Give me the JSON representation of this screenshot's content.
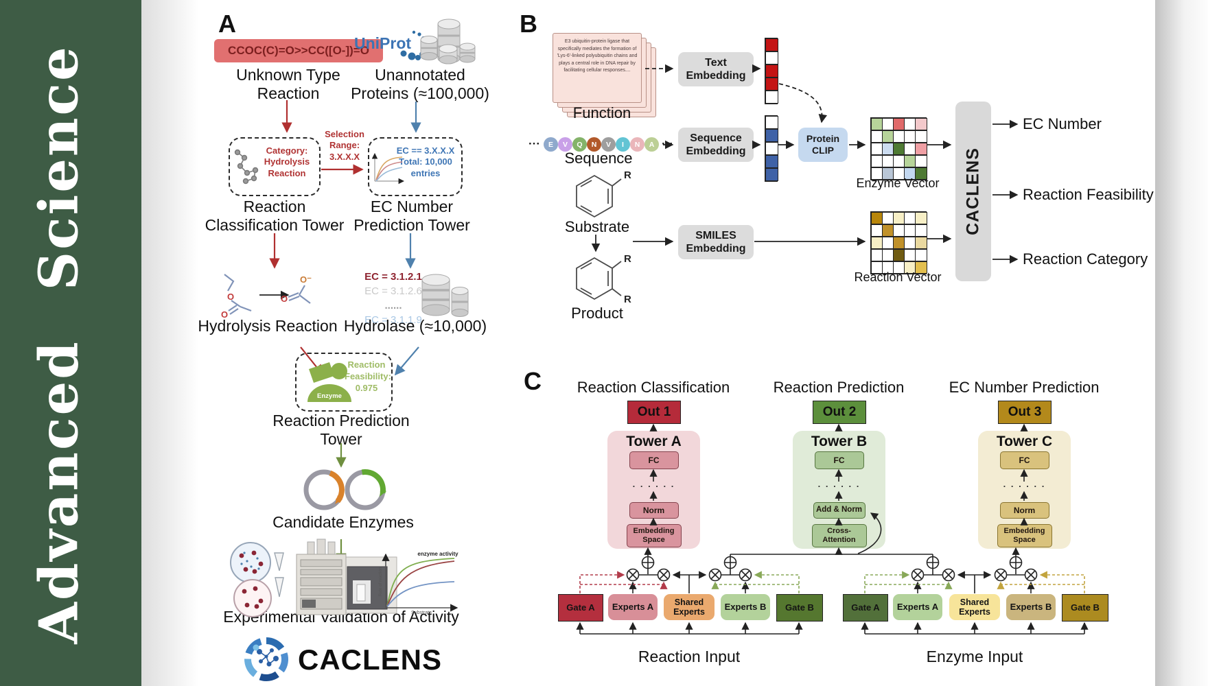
{
  "journal": {
    "name": "Advanced Science",
    "sidebar_color": "#3e5c45"
  },
  "panelA": {
    "label": "A",
    "smiles": "CCOC(C)=O>>CC([O-])=O",
    "unknown_reaction": "Unknown Type\nReaction",
    "uniprot": "UniProt",
    "unannotated": "Unannotated\nProteins (≈100,000)",
    "category_box": "Category:\nHydrolysis\nReaction",
    "selection": "Selection\nRange:\n3.X.X.X",
    "ec_box": "EC == 3.X.X.X\nTotal: 10,000\nentries",
    "tower1": "Reaction\nClassification Tower",
    "tower2": "EC Number\nPrediction Tower",
    "hydrolysis": "Hydrolysis Reaction",
    "ec_list": [
      {
        "text": "EC = 3.1.2.1",
        "color": "#8f2430",
        "bold": true
      },
      {
        "text": "EC = 3.1.2.6",
        "color": "#c9c9c9",
        "bold": false
      },
      {
        "text": "......",
        "color": "#9a9a9a",
        "bold": true
      },
      {
        "text": "EC = 3.1.1.9",
        "color": "#a9c7e4",
        "bold": false
      }
    ],
    "hydrolase": "Hydrolase (≈10,000)",
    "enzyme_label": "Enzyme",
    "feasibility": "Reaction\nFeasibility:\n0.975",
    "tower3": "Reaction Prediction Tower",
    "candidate": "Candidate Enzymes",
    "plot": {
      "ylabel": "Rate of reaction",
      "xlabel": "Substrate",
      "annotation": "enzyme activity"
    },
    "validation": "Experimental Validation of Activity",
    "logo_text": "CACLENS",
    "atoms": {
      "o": "O",
      "o_neg": "O⁻"
    }
  },
  "panelB": {
    "label": "B",
    "function_card": "E3 ubiquitin-protein ligase that specifically mediates the formation of 'Lys-6'-linked polyubiquitin chains and plays a central role in DNA repair by facilitating cellular responses....",
    "function_label": "Function",
    "ellipsis": "···",
    "residues": [
      {
        "l": "E",
        "c": "#8fa9cc"
      },
      {
        "l": "V",
        "c": "#c9a0e8"
      },
      {
        "l": "Q",
        "c": "#84b36a"
      },
      {
        "l": "N",
        "c": "#b2592a"
      },
      {
        "l": "V",
        "c": "#9e9e9e"
      },
      {
        "l": "I",
        "c": "#62c4d4"
      },
      {
        "l": "N",
        "c": "#eab6ba"
      },
      {
        "l": "A",
        "c": "#bccf96"
      }
    ],
    "sequence_label": "Sequence",
    "substrate": "Substrate",
    "product": "Product",
    "r_label": "R",
    "text_embedding": "Text\nEmbedding",
    "sequence_embedding": "Sequence\nEmbedding",
    "smiles_embedding": "SMILES\nEmbedding",
    "protein_clip": "Protein\nCLIP",
    "text_vector": [
      "#c41414",
      "#ffffff",
      "#c41414",
      "#c41414",
      "#ffffff"
    ],
    "seq_vector": [
      "#ffffff",
      "#3f62a7",
      "#ffffff",
      "#3f62a7",
      "#3f62a7"
    ],
    "enzyme_vector": [
      [
        "#b7d49a",
        "#ffffff",
        "#e06a6a",
        "#ffffff",
        "#f3c9cb"
      ],
      [
        "#ffffff",
        "#b7d49a",
        "#ffffff",
        "#ffffff",
        "#ffffff"
      ],
      [
        "#ffffff",
        "#ccdcf0",
        "#4e7a33",
        "#ffffff",
        "#ef9fa4"
      ],
      [
        "#ffffff",
        "#ffffff",
        "#ffffff",
        "#b7d49a",
        "#ffffff"
      ],
      [
        "#ffffff",
        "#b9c6d6",
        "#ffffff",
        "#c3d8f0",
        "#4e7a33"
      ]
    ],
    "reaction_vector": [
      [
        "#b8860b",
        "#ffffff",
        "#f7efc6",
        "#ffffff",
        "#f7efc6"
      ],
      [
        "#ffffff",
        "#c0912a",
        "#ffffff",
        "#ffffff",
        "#ffffff"
      ],
      [
        "#f7efc6",
        "#ffffff",
        "#c0912a",
        "#ffffff",
        "#ead9a0"
      ],
      [
        "#ffffff",
        "#ffffff",
        "#6f5b12",
        "#ffffff",
        "#ffffff"
      ],
      [
        "#ffffff",
        "#ffffff",
        "#ffffff",
        "#f7efc6",
        "#e3bf4e"
      ]
    ],
    "enzyme_vector_label": "Enzyme Vector",
    "reaction_vector_label": "Reaction Vector",
    "caclens": "CACLENS",
    "outputs": [
      "EC Number",
      "Reaction Feasibility",
      "Reaction Category"
    ]
  },
  "panelC": {
    "label": "C",
    "sections": [
      "Reaction Classification",
      "Reaction Prediction",
      "EC Number Prediction"
    ],
    "outs": [
      {
        "label": "Out 1",
        "bg": "#b52b3a"
      },
      {
        "label": "Out 2",
        "bg": "#5c8f3c"
      },
      {
        "label": "Out 3",
        "bg": "#b3891b"
      }
    ],
    "towers": [
      {
        "title": "Tower A",
        "bg": "#f2d7da",
        "box_bg": "#d9949e",
        "box_border": "#84424d",
        "fc": "FC",
        "dots": ". . . . . .",
        "mid": "Norm",
        "base": "Embedding\nSpace"
      },
      {
        "title": "Tower B",
        "bg": "#e0ebd8",
        "box_bg": "#abc897",
        "box_border": "#56753f",
        "fc": "FC",
        "dots": ". . . . . .",
        "mid": "Add & Norm",
        "base": "Cross-\nAttention"
      },
      {
        "title": "Tower C",
        "bg": "#f3ecd3",
        "box_bg": "#d9c27d",
        "box_border": "#89742f",
        "fc": "FC",
        "dots": ". . . . . .",
        "mid": "Norm",
        "base": "Embedding\nSpace"
      }
    ],
    "moe_left": {
      "input": "Reaction Input",
      "gate_a": {
        "label": "Gate A",
        "bg": "#b42f3e"
      },
      "experts_a": {
        "label": "Experts A",
        "bg": "#d88f98"
      },
      "shared": {
        "label": "Shared\nExperts",
        "bg": "#eaa96e"
      },
      "experts_b": {
        "label": "Experts B",
        "bg": "#b3d29b"
      },
      "gate_b": {
        "label": "Gate B",
        "bg": "#55772f"
      }
    },
    "moe_right": {
      "input": "Enzyme Input",
      "gate_a": {
        "label": "Gate A",
        "bg": "#52703a"
      },
      "experts_a": {
        "label": "Experts A",
        "bg": "#b3d29b"
      },
      "shared": {
        "label": "Shared\nExperts",
        "bg": "#f7e49a"
      },
      "experts_b": {
        "label": "Experts B",
        "bg": "#cab57e"
      },
      "gate_b": {
        "label": "Gate B",
        "bg": "#ac8b20"
      }
    },
    "colors": {
      "gate_red": "#b23b4a",
      "gate_green": "#88a858",
      "gate_gold": "#c2a43e",
      "red_arrow": "#b03030",
      "blue_arrow": "#4f81ad",
      "green_arrow": "#6f8f3f"
    }
  }
}
